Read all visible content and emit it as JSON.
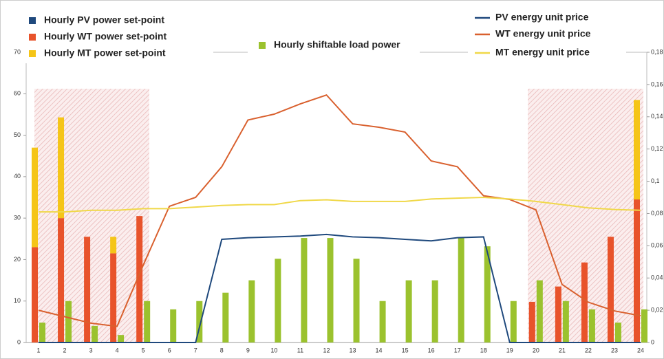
{
  "chart_data": {
    "type": "bar",
    "categories": [
      "1",
      "2",
      "3",
      "4",
      "5",
      "6",
      "7",
      "8",
      "9",
      "10",
      "11",
      "12",
      "13",
      "14",
      "15",
      "16",
      "17",
      "18",
      "19",
      "20",
      "21",
      "22",
      "23",
      "24"
    ],
    "ylim": [
      0,
      70
    ],
    "yticks": [
      0,
      10,
      20,
      30,
      40,
      50,
      60,
      70
    ],
    "y2lim": [
      0,
      0.18
    ],
    "y2ticks": [
      0,
      {
        "value": 0.02,
        "label": "0,02"
      },
      {
        "value": 0.04,
        "label": "0,04"
      },
      {
        "value": 0.06,
        "label": "0,06"
      },
      {
        "value": 0.08,
        "label": "0,08"
      },
      {
        "value": 0.1,
        "label": "0,1"
      },
      {
        "value": 0.12,
        "label": "0,12"
      },
      {
        "value": 0.14,
        "label": "0,14"
      },
      {
        "value": 0.16,
        "label": "0,16"
      },
      {
        "value": 0.18,
        "label": "0,18"
      }
    ],
    "series": [
      {
        "name": "Hourly PV power set-point",
        "type": "bar",
        "stack": "power",
        "color": "#1f497d",
        "values": [
          0,
          0,
          0,
          0,
          0,
          0,
          0,
          0,
          0,
          0,
          0,
          0,
          0,
          0,
          0,
          0,
          0,
          0,
          0,
          0,
          0,
          0,
          0,
          0
        ]
      },
      {
        "name": "Hourly WT power set-point",
        "type": "bar",
        "stack": "power",
        "color": "#e8532b",
        "values": [
          23,
          30,
          25.5,
          21.5,
          30.5,
          0,
          0,
          0,
          0,
          0,
          0,
          0,
          0,
          0,
          0,
          0,
          0,
          0,
          0,
          9.8,
          13.5,
          19.3,
          25.5,
          34.5
        ]
      },
      {
        "name": "Hourly MT power set-point",
        "type": "bar",
        "stack": "power",
        "color": "#f5c518",
        "values": [
          24,
          24.3,
          0,
          4,
          0,
          0,
          0,
          0,
          0,
          0,
          0,
          0,
          0,
          0,
          0,
          0,
          0,
          0,
          0,
          0,
          0,
          0,
          0,
          24
        ]
      },
      {
        "name": "Hourly shiftable load power",
        "type": "bar",
        "stack": "load",
        "color": "#9bc22e",
        "values": [
          4.8,
          10,
          4,
          1.8,
          10,
          8,
          10,
          12,
          15,
          20.2,
          25.2,
          25.2,
          20.2,
          10,
          15,
          15,
          25.2,
          23.2,
          10,
          15,
          10,
          8,
          4.8,
          8
        ]
      },
      {
        "name": "PV energy unit price",
        "type": "line",
        "axis": "y2",
        "color": "#1f497d",
        "values": [
          0,
          0,
          0,
          0,
          0,
          0,
          0,
          0.064,
          0.065,
          0.0655,
          0.066,
          0.067,
          0.0655,
          0.065,
          0.064,
          0.063,
          0.065,
          0.0655,
          0,
          0,
          0,
          0,
          0,
          0
        ]
      },
      {
        "name": "WT energy unit price",
        "type": "line",
        "axis": "y2",
        "color": "#d9602e",
        "values": [
          0.02,
          0.016,
          0.012,
          0.01,
          0.048,
          0.0845,
          0.09,
          0.109,
          0.138,
          0.1416,
          0.148,
          0.1535,
          0.1356,
          0.1335,
          0.1305,
          0.1126,
          0.109,
          0.091,
          0.0887,
          0.0823,
          0.036,
          0.025,
          0.0196,
          0.0166
        ]
      },
      {
        "name": "MT energy unit price",
        "type": "line",
        "axis": "y2",
        "color": "#f0d848",
        "values": [
          0.081,
          0.081,
          0.082,
          0.082,
          0.083,
          0.083,
          0.084,
          0.085,
          0.0855,
          0.0855,
          0.088,
          0.0885,
          0.0875,
          0.0875,
          0.0875,
          0.089,
          0.0895,
          0.09,
          0.089,
          0.0875,
          0.0855,
          0.0835,
          0.0825,
          0.082
        ]
      }
    ]
  }
}
